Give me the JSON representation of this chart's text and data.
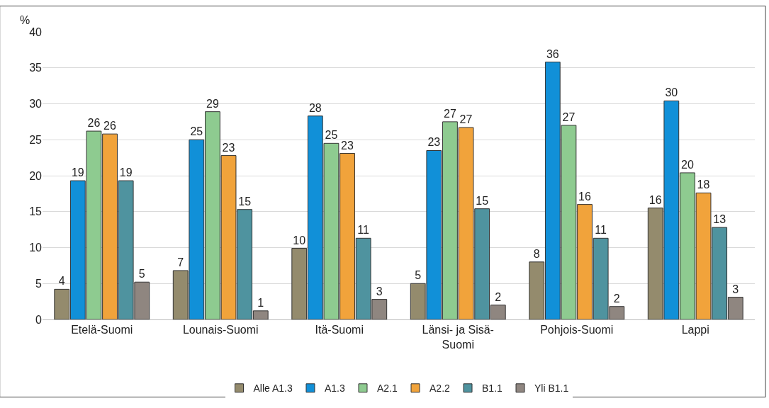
{
  "chart_data": {
    "type": "bar",
    "ylabel": "%",
    "categories": [
      "Etelä-Suomi",
      "Lounais-Suomi",
      "Itä-Suomi",
      "Länsi- ja Sisä-Suomi",
      "Pohjois-Suomi",
      "Lappi"
    ],
    "series": [
      {
        "name": "Alle A1.3",
        "color": "#948b6d",
        "values": [
          4.2,
          6.8,
          9.9,
          5.0,
          8.0,
          15.5
        ],
        "value_labels": [
          "4",
          "7",
          "10",
          "5",
          "8",
          "16"
        ]
      },
      {
        "name": "A1.3",
        "color": "#1190d8",
        "values": [
          19.3,
          25.0,
          28.3,
          23.5,
          35.8,
          30.4
        ],
        "value_labels": [
          "19",
          "25",
          "28",
          "23",
          "36",
          "30"
        ]
      },
      {
        "name": "A2.1",
        "color": "#8ecb90",
        "values": [
          26.2,
          28.9,
          24.5,
          27.5,
          27.0,
          20.4
        ],
        "value_labels": [
          "26",
          "29",
          "25",
          "27",
          "27",
          "20"
        ]
      },
      {
        "name": "A2.2",
        "color": "#f1a33b",
        "values": [
          25.8,
          22.8,
          23.1,
          26.7,
          16.0,
          17.6
        ],
        "value_labels": [
          "26",
          "23",
          "23",
          "27",
          "16",
          "18"
        ]
      },
      {
        "name": "B1.1",
        "color": "#4f939f",
        "values": [
          19.3,
          15.3,
          11.3,
          15.4,
          11.3,
          12.8
        ],
        "value_labels": [
          "19",
          "15",
          "11",
          "15",
          "11",
          "13"
        ]
      },
      {
        "name": "Yli B1.1",
        "color": "#8f8680",
        "values": [
          5.2,
          1.2,
          2.8,
          2.0,
          1.8,
          3.1
        ],
        "value_labels": [
          "5",
          "1",
          "3",
          "2",
          "2",
          "3"
        ]
      }
    ],
    "ylim": [
      0,
      40
    ],
    "yticks": [
      0,
      5,
      10,
      15,
      20,
      25,
      30,
      35,
      40
    ],
    "grid": "y",
    "legend": "bottom"
  }
}
